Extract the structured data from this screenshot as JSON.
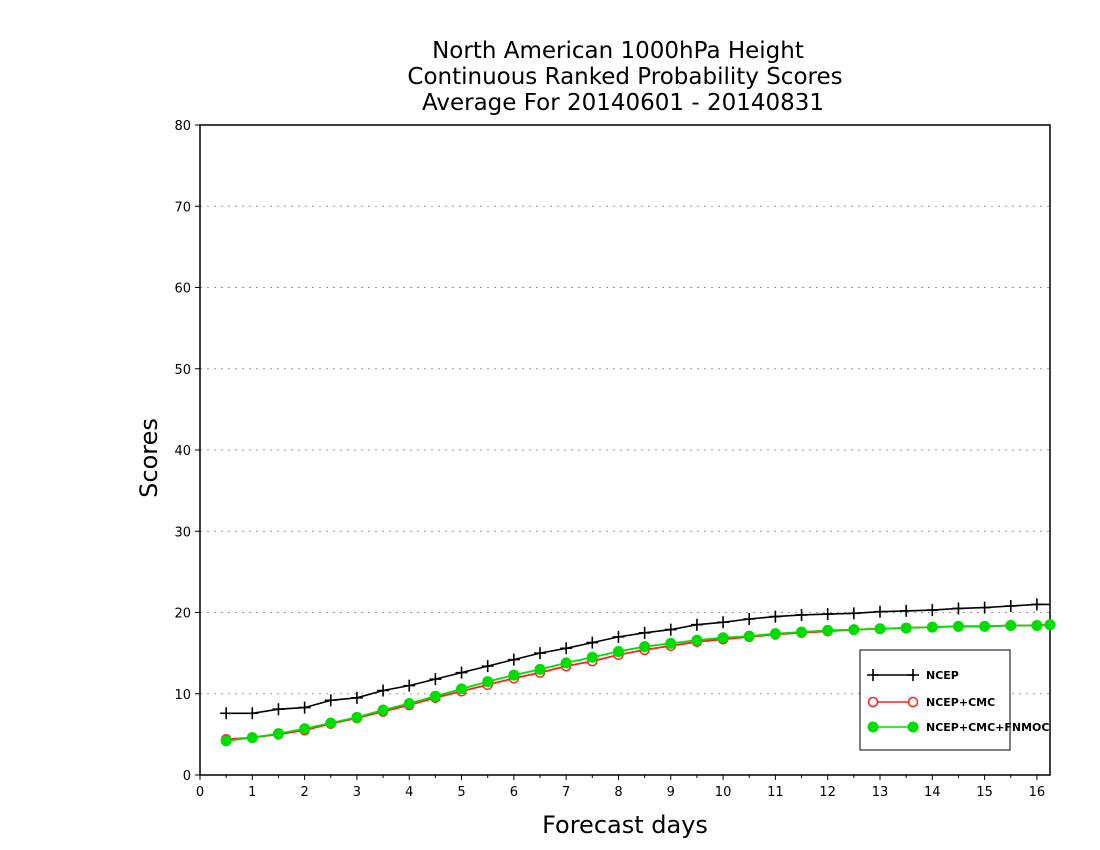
{
  "chart_data": {
    "type": "line",
    "title": [
      "North American 1000hPa Height",
      "Continuous Ranked Probability Scores",
      "Average For 20140601 - 20140831"
    ],
    "xlabel": "Forecast days",
    "ylabel": "Scores",
    "xlim": [
      0,
      16.25
    ],
    "ylim": [
      0,
      80
    ],
    "xticks": [
      "0",
      "1",
      "2",
      "3",
      "4",
      "5",
      "6",
      "7",
      "8",
      "9",
      "10",
      "11",
      "12",
      "13",
      "14",
      "15",
      "16"
    ],
    "yticks": [
      "0",
      "10",
      "20",
      "30",
      "40",
      "50",
      "60",
      "70",
      "80"
    ],
    "grid": "horizontal dotted",
    "legend_position": "bottom-right",
    "x": [
      0.5,
      1,
      1.5,
      2,
      2.5,
      3,
      3.5,
      4,
      4.5,
      5,
      5.5,
      6,
      6.5,
      7,
      7.5,
      8,
      8.5,
      9,
      9.5,
      10,
      10.5,
      11,
      11.5,
      12,
      12.5,
      13,
      13.5,
      14,
      14.5,
      15,
      15.5,
      16,
      16.25
    ],
    "series": [
      {
        "name": "NCEP",
        "color": "#000000",
        "marker": "plus",
        "values": [
          7.6,
          7.6,
          8.1,
          8.3,
          9.2,
          9.5,
          10.4,
          11.0,
          11.8,
          12.6,
          13.4,
          14.2,
          15.0,
          15.6,
          16.3,
          17.0,
          17.5,
          17.9,
          18.5,
          18.8,
          19.2,
          19.5,
          19.7,
          19.8,
          19.9,
          20.1,
          20.2,
          20.3,
          20.5,
          20.6,
          20.8,
          21.0,
          21.0
        ]
      },
      {
        "name": "NCEP+CMC",
        "color": "#ff2020",
        "marker": "open-circle",
        "values": [
          4.4,
          4.6,
          5.0,
          5.5,
          6.3,
          7.0,
          7.8,
          8.6,
          9.5,
          10.3,
          11.1,
          11.9,
          12.6,
          13.4,
          14.0,
          14.8,
          15.4,
          15.9,
          16.4,
          16.7,
          17.0,
          17.3,
          17.5,
          17.7,
          17.9,
          18.0,
          18.1,
          18.2,
          18.3,
          18.3,
          18.4,
          18.4,
          18.5
        ]
      },
      {
        "name": "NCEP+CMC+FNMOC",
        "color": "#00dd00",
        "marker": "filled-circle",
        "values": [
          4.2,
          4.6,
          5.1,
          5.7,
          6.4,
          7.1,
          8.0,
          8.8,
          9.7,
          10.6,
          11.5,
          12.3,
          13.0,
          13.8,
          14.5,
          15.2,
          15.8,
          16.2,
          16.6,
          16.9,
          17.1,
          17.4,
          17.6,
          17.8,
          17.9,
          18.0,
          18.1,
          18.2,
          18.3,
          18.3,
          18.4,
          18.4,
          18.5
        ]
      }
    ]
  }
}
